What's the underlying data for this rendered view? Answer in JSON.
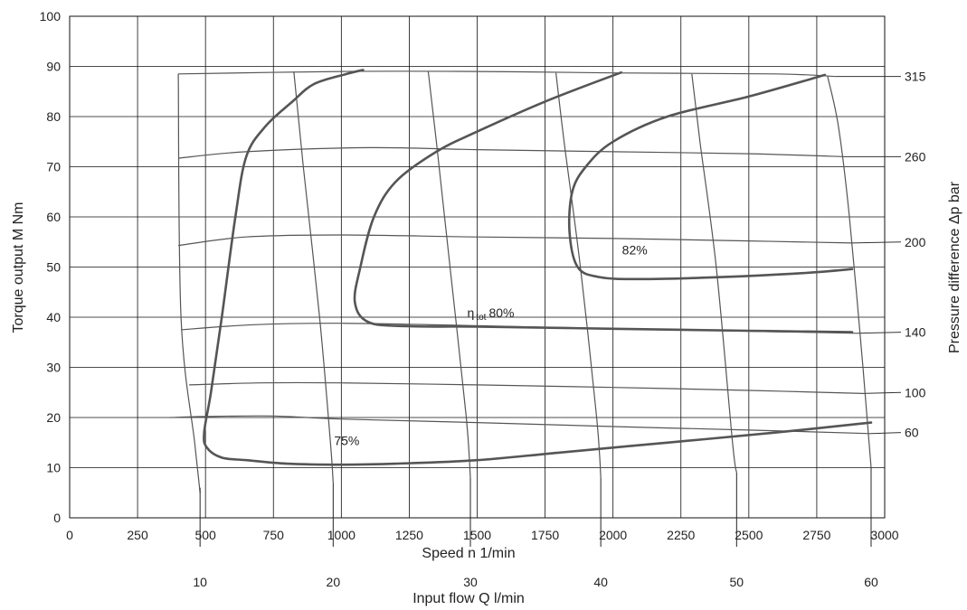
{
  "chart_data": {
    "type": "line",
    "xlabel": "Speed n 1/min",
    "ylabel": "Torque output M Nm",
    "y2label": "Pressure difference Δp bar",
    "x2label": "Input flow Q l/min",
    "xlim": [
      0,
      3000
    ],
    "ylim": [
      0,
      100
    ],
    "x_ticks": [
      "0",
      "250",
      "500",
      "750",
      "1000",
      "1250",
      "1500",
      "1750",
      "2000",
      "2250",
      "2500",
      "2750",
      "3000"
    ],
    "y_ticks": [
      "0",
      "10",
      "20",
      "30",
      "40",
      "50",
      "60",
      "70",
      "80",
      "90",
      "100"
    ],
    "grid": true,
    "pressure_lines": [
      {
        "label": "315",
        "label_y": 88,
        "points": [
          [
            400,
            88.5
          ],
          [
            1000,
            89
          ],
          [
            1500,
            89
          ],
          [
            2000,
            88.7
          ],
          [
            2600,
            88.5
          ],
          [
            2820,
            88
          ]
        ]
      },
      {
        "label": "260",
        "label_y": 72,
        "points": [
          [
            400,
            71.7
          ],
          [
            650,
            73
          ],
          [
            1100,
            73.8
          ],
          [
            1500,
            73.4
          ],
          [
            2000,
            73
          ],
          [
            2500,
            72.6
          ],
          [
            2850,
            72
          ]
        ]
      },
      {
        "label": "200",
        "label_y": 55,
        "points": [
          [
            400,
            54.3
          ],
          [
            650,
            56
          ],
          [
            1000,
            56.4
          ],
          [
            1500,
            56
          ],
          [
            2000,
            55.7
          ],
          [
            2500,
            55.2
          ],
          [
            2880,
            54.8
          ]
        ]
      },
      {
        "label": "140",
        "label_y": 37,
        "points": [
          [
            410,
            37.5
          ],
          [
            680,
            38.5
          ],
          [
            1000,
            38.8
          ],
          [
            1500,
            38.3
          ],
          [
            2000,
            37.7
          ],
          [
            2500,
            37.2
          ],
          [
            2900,
            36.8
          ]
        ]
      },
      {
        "label": "100",
        "label_y": 25,
        "points": [
          [
            440,
            26.5
          ],
          [
            700,
            26.9
          ],
          [
            1000,
            26.9
          ],
          [
            1500,
            26.5
          ],
          [
            2000,
            26
          ],
          [
            2500,
            25.4
          ],
          [
            2920,
            24.8
          ]
        ]
      },
      {
        "label": "60",
        "label_y": 17,
        "points": [
          [
            370,
            20
          ],
          [
            500,
            20.2
          ],
          [
            750,
            20.3
          ],
          [
            1000,
            19.7
          ],
          [
            1500,
            19
          ],
          [
            2000,
            18.2
          ],
          [
            2500,
            17.5
          ],
          [
            2950,
            16.8
          ]
        ]
      }
    ],
    "flow_lines": [
      {
        "label": "10",
        "points": [
          [
            400,
            88.5
          ],
          [
            410,
            40
          ],
          [
            460,
            15
          ],
          [
            480,
            5
          ]
        ],
        "tick_x": 480,
        "tick_range": [
          1,
          6
        ]
      },
      {
        "label": "20",
        "points": [
          [
            825,
            89
          ],
          [
            860,
            70
          ],
          [
            920,
            40
          ],
          [
            960,
            15
          ],
          [
            970,
            7
          ]
        ],
        "tick_x": 970,
        "tick_range": [
          1,
          7
        ]
      },
      {
        "label": "30",
        "points": [
          [
            1320,
            89
          ],
          [
            1350,
            75
          ],
          [
            1400,
            50
          ],
          [
            1460,
            20
          ],
          [
            1475,
            8
          ]
        ],
        "tick_x": 1475,
        "tick_range": [
          1,
          8
        ]
      },
      {
        "label": "40",
        "points": [
          [
            1790,
            88.7
          ],
          [
            1820,
            75
          ],
          [
            1880,
            50
          ],
          [
            1940,
            20
          ],
          [
            1955,
            8
          ]
        ],
        "tick_x": 1955,
        "tick_range": [
          1,
          8
        ]
      },
      {
        "label": "50",
        "points": [
          [
            2290,
            88.5
          ],
          [
            2320,
            75
          ],
          [
            2380,
            50
          ],
          [
            2440,
            15
          ],
          [
            2455,
            9
          ]
        ],
        "tick_x": 2455,
        "tick_range": [
          1,
          9
        ]
      },
      {
        "label": "60",
        "points": [
          [
            2790,
            88
          ],
          [
            2830,
            78
          ],
          [
            2870,
            60
          ],
          [
            2920,
            30
          ],
          [
            2950,
            10
          ]
        ],
        "tick_x": 2950,
        "tick_range": [
          1,
          10
        ]
      }
    ],
    "efficiency_contours": [
      {
        "label": "75%",
        "label_pos": [
          1020,
          14.5
        ],
        "points": [
          [
            1080,
            89.3
          ],
          [
            1020,
            88.5
          ],
          [
            900,
            86.5
          ],
          [
            820,
            83
          ],
          [
            720,
            78
          ],
          [
            650,
            72
          ],
          [
            610,
            60
          ],
          [
            560,
            40
          ],
          [
            520,
            25
          ],
          [
            495,
            17
          ],
          [
            505,
            14
          ],
          [
            560,
            12
          ],
          [
            650,
            11.5
          ],
          [
            800,
            10.8
          ],
          [
            1000,
            10.6
          ],
          [
            1200,
            10.8
          ],
          [
            1500,
            11.5
          ],
          [
            1800,
            13
          ],
          [
            2200,
            15
          ],
          [
            2600,
            17
          ],
          [
            2950,
            19
          ]
        ]
      },
      {
        "label": "80%",
        "label_pos": [
          1550,
          40
        ],
        "label_prefix": "η",
        "label_sub": "tot",
        "points": [
          [
            2030,
            88.8
          ],
          [
            1750,
            83
          ],
          [
            1500,
            77
          ],
          [
            1350,
            73
          ],
          [
            1200,
            67
          ],
          [
            1120,
            60
          ],
          [
            1070,
            50
          ],
          [
            1050,
            43
          ],
          [
            1100,
            39
          ],
          [
            1250,
            38.2
          ],
          [
            1500,
            38.1
          ],
          [
            2000,
            37.7
          ],
          [
            2500,
            37.3
          ],
          [
            2880,
            37
          ]
        ]
      },
      {
        "label": "82%",
        "label_pos": [
          2080,
          52.5
        ],
        "points": [
          [
            2780,
            88.3
          ],
          [
            2500,
            84
          ],
          [
            2200,
            80
          ],
          [
            2000,
            75
          ],
          [
            1900,
            70
          ],
          [
            1850,
            65
          ],
          [
            1840,
            57
          ],
          [
            1870,
            50
          ],
          [
            1950,
            48
          ],
          [
            2100,
            47.6
          ],
          [
            2400,
            48
          ],
          [
            2700,
            48.8
          ],
          [
            2880,
            49.6
          ]
        ]
      }
    ]
  }
}
